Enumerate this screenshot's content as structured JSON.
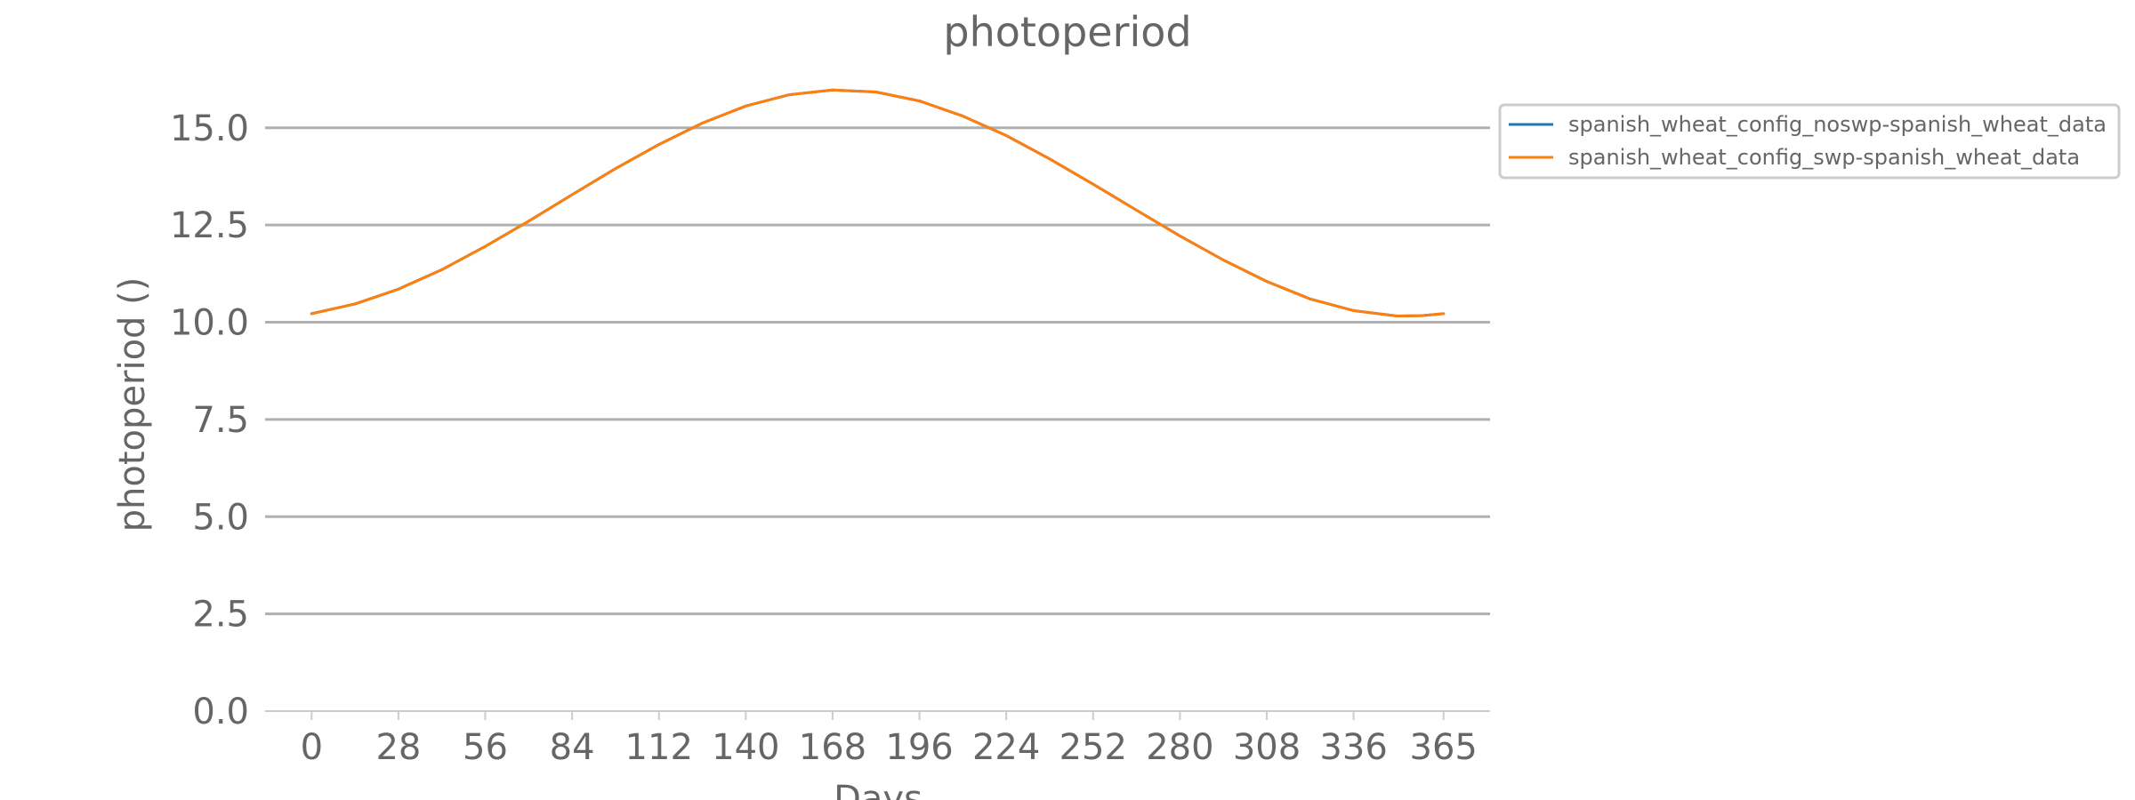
{
  "chart_data": {
    "type": "line",
    "title": "photoperiod",
    "xlabel": "Days",
    "ylabel": "photoperiod ()",
    "xlim": [
      -15,
      380
    ],
    "ylim": [
      0,
      16
    ],
    "grid": "horizontal",
    "legend_position": "outside-right-top",
    "x_ticks": [
      0,
      28,
      56,
      84,
      112,
      140,
      168,
      196,
      224,
      252,
      280,
      308,
      336,
      365
    ],
    "y_ticks": [
      0,
      2.5,
      5,
      7.5,
      10,
      12.5,
      15
    ],
    "y_tick_labels": [
      "0.0",
      "2.5",
      "5.0",
      "7.5",
      "10.0",
      "12.5",
      "15.0"
    ],
    "x": [
      0,
      14,
      28,
      42,
      56,
      70,
      84,
      98,
      112,
      126,
      140,
      154,
      168,
      182,
      196,
      210,
      224,
      238,
      252,
      266,
      280,
      294,
      308,
      322,
      336,
      350,
      358,
      365
    ],
    "series": [
      {
        "name": "spanish_wheat_config_noswp-spanish_wheat_data",
        "color": "#1f77b4",
        "values": [
          10.22,
          10.47,
          10.85,
          11.35,
          11.95,
          12.6,
          13.28,
          13.95,
          14.57,
          15.12,
          15.56,
          15.85,
          15.97,
          15.92,
          15.69,
          15.3,
          14.8,
          14.2,
          13.55,
          12.88,
          12.22,
          11.6,
          11.05,
          10.6,
          10.3,
          10.16,
          10.17,
          10.22
        ]
      },
      {
        "name": "spanish_wheat_config_swp-spanish_wheat_data",
        "color": "#ff7f0e",
        "values": [
          10.22,
          10.47,
          10.85,
          11.35,
          11.95,
          12.6,
          13.28,
          13.95,
          14.57,
          15.12,
          15.56,
          15.85,
          15.97,
          15.92,
          15.69,
          15.3,
          14.8,
          14.2,
          13.55,
          12.88,
          12.22,
          11.6,
          11.05,
          10.6,
          10.3,
          10.16,
          10.17,
          10.22
        ]
      }
    ]
  }
}
